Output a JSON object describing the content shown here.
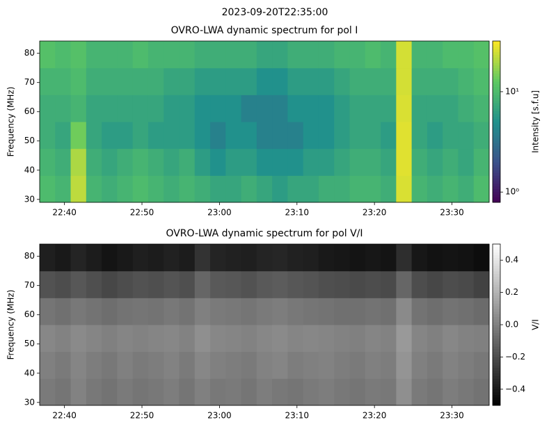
{
  "title": "2023-09-20T22:35:00",
  "chart_data": [
    {
      "type": "heatmap",
      "title": "OVRO-LWA dynamic spectrum for pol I",
      "ylabel": "Frequency (MHz)",
      "colorbar_label": "Intensity [s.f.u]",
      "colormap": "viridis",
      "color_scale": "log",
      "clim": [
        0.79,
        32
      ],
      "cticks": [
        {
          "value": 1,
          "label": "10⁰"
        },
        {
          "value": 10,
          "label": "10¹"
        }
      ],
      "xlim": [
        36.8,
        94.8
      ],
      "xticks": [
        {
          "value": 40,
          "label": "22:40"
        },
        {
          "value": 50,
          "label": "22:50"
        },
        {
          "value": 60,
          "label": "23:00"
        },
        {
          "value": 70,
          "label": "23:10"
        },
        {
          "value": 80,
          "label": "23:20"
        },
        {
          "value": 90,
          "label": "23:30"
        }
      ],
      "ylim": [
        29,
        84.2
      ],
      "yticks": [
        30,
        40,
        50,
        60,
        70,
        80
      ],
      "x": [
        37.8,
        39.8,
        41.8,
        43.8,
        45.8,
        47.8,
        49.8,
        51.8,
        53.8,
        55.8,
        57.8,
        59.8,
        61.8,
        63.8,
        65.8,
        67.8,
        69.8,
        71.8,
        73.8,
        75.8,
        77.8,
        79.8,
        81.8,
        83.8,
        85.8,
        87.8,
        89.8,
        91.8,
        93.8
      ],
      "y": [
        33.6,
        42.8,
        52,
        61.2,
        70.4,
        79.6
      ],
      "z": [
        [
          10,
          9,
          22,
          9,
          8,
          9,
          10,
          9,
          8,
          9,
          8,
          7,
          7,
          8,
          7,
          6,
          7,
          7,
          8,
          8,
          9,
          9,
          8,
          26,
          9,
          8,
          9,
          8,
          10
        ],
        [
          9,
          8,
          20,
          8,
          7,
          8,
          9,
          8,
          7,
          8,
          6,
          5,
          6,
          6,
          5,
          5,
          5,
          6,
          6,
          7,
          8,
          8,
          7,
          27,
          8,
          7,
          8,
          7,
          9
        ],
        [
          8,
          7,
          14,
          7,
          6,
          6,
          7,
          6,
          6,
          6,
          5,
          4,
          5,
          5,
          4,
          4,
          4,
          5,
          5,
          6,
          7,
          7,
          6,
          27,
          7,
          6,
          7,
          7,
          8
        ],
        [
          8,
          8,
          9,
          7,
          7,
          7,
          7,
          7,
          6,
          6,
          5,
          5,
          5,
          4,
          4,
          4,
          5,
          5,
          5,
          6,
          7,
          7,
          7,
          26,
          7,
          7,
          7,
          8,
          9
        ],
        [
          9,
          9,
          10,
          8,
          8,
          8,
          8,
          8,
          7,
          7,
          6,
          6,
          6,
          6,
          5,
          5,
          6,
          6,
          6,
          7,
          8,
          8,
          8,
          25,
          8,
          8,
          8,
          9,
          10
        ],
        [
          11,
          10,
          11,
          9,
          9,
          9,
          10,
          9,
          9,
          9,
          8,
          8,
          8,
          8,
          7,
          7,
          8,
          8,
          8,
          9,
          9,
          10,
          9,
          25,
          9,
          9,
          10,
          10,
          11
        ]
      ]
    },
    {
      "type": "heatmap",
      "title": "OVRO-LWA dynamic spectrum for pol V/I",
      "ylabel": "Frequency (MHz)",
      "colorbar_label": "V/I",
      "colormap": "gray",
      "color_scale": "linear",
      "clim": [
        -0.5,
        0.5
      ],
      "cticks": [
        {
          "value": -0.4,
          "label": "−0.4"
        },
        {
          "value": -0.2,
          "label": "−0.2"
        },
        {
          "value": 0,
          "label": "0.0"
        },
        0.2,
        0.4
      ],
      "xlim": [
        36.8,
        94.8
      ],
      "xticks": [
        {
          "value": 40,
          "label": "22:40"
        },
        {
          "value": 50,
          "label": "22:50"
        },
        {
          "value": 60,
          "label": "23:00"
        },
        {
          "value": 70,
          "label": "23:10"
        },
        {
          "value": 80,
          "label": "23:20"
        },
        {
          "value": 90,
          "label": "23:30"
        }
      ],
      "ylim": [
        29,
        84.2
      ],
      "yticks": [
        30,
        40,
        50,
        60,
        70,
        80
      ],
      "x": [
        37.8,
        39.8,
        41.8,
        43.8,
        45.8,
        47.8,
        49.8,
        51.8,
        53.8,
        55.8,
        57.8,
        59.8,
        61.8,
        63.8,
        65.8,
        67.8,
        69.8,
        71.8,
        73.8,
        75.8,
        77.8,
        79.8,
        81.8,
        83.8,
        85.8,
        87.8,
        89.8,
        91.8,
        93.8
      ],
      "y": [
        33.6,
        42.8,
        52,
        61.2,
        70.4,
        79.6
      ],
      "z": [
        [
          -0.02,
          -0.04,
          0.01,
          -0.03,
          -0.05,
          -0.02,
          -0.04,
          -0.03,
          -0.01,
          -0.04,
          0.0,
          -0.03,
          -0.02,
          -0.04,
          -0.01,
          -0.03,
          -0.04,
          -0.02,
          -0.01,
          -0.03,
          -0.04,
          -0.02,
          -0.03,
          0.06,
          -0.02,
          -0.04,
          -0.01,
          -0.03,
          -0.05
        ],
        [
          0.0,
          -0.02,
          0.02,
          -0.01,
          -0.03,
          0.0,
          -0.02,
          -0.01,
          0.01,
          -0.02,
          0.03,
          0.0,
          -0.01,
          -0.02,
          0.01,
          0.02,
          -0.01,
          0.0,
          0.01,
          -0.01,
          -0.02,
          0.0,
          -0.01,
          0.08,
          0.0,
          -0.02,
          0.01,
          -0.01,
          -0.03
        ],
        [
          0.03,
          0.01,
          0.04,
          0.02,
          0.0,
          0.02,
          0.01,
          0.02,
          0.03,
          0.01,
          0.06,
          0.03,
          0.02,
          0.01,
          0.03,
          0.04,
          0.02,
          0.03,
          0.02,
          0.01,
          0.0,
          0.02,
          0.01,
          0.1,
          0.02,
          0.0,
          0.03,
          0.01,
          0.0
        ],
        [
          -0.04,
          -0.06,
          -0.03,
          -0.05,
          -0.07,
          -0.05,
          -0.04,
          -0.05,
          -0.03,
          -0.05,
          0.0,
          -0.02,
          -0.03,
          -0.04,
          -0.02,
          -0.01,
          -0.03,
          -0.04,
          -0.05,
          -0.06,
          -0.06,
          -0.05,
          -0.06,
          0.04,
          -0.05,
          -0.07,
          -0.05,
          -0.06,
          -0.08
        ],
        [
          -0.18,
          -0.2,
          -0.16,
          -0.19,
          -0.22,
          -0.2,
          -0.18,
          -0.19,
          -0.17,
          -0.19,
          -0.1,
          -0.15,
          -0.16,
          -0.18,
          -0.15,
          -0.14,
          -0.16,
          -0.17,
          -0.19,
          -0.2,
          -0.21,
          -0.2,
          -0.21,
          -0.1,
          -0.2,
          -0.22,
          -0.2,
          -0.21,
          -0.24
        ],
        [
          -0.38,
          -0.4,
          -0.36,
          -0.39,
          -0.42,
          -0.4,
          -0.38,
          -0.39,
          -0.37,
          -0.39,
          -0.3,
          -0.36,
          -0.37,
          -0.38,
          -0.36,
          -0.35,
          -0.37,
          -0.38,
          -0.4,
          -0.41,
          -0.42,
          -0.41,
          -0.42,
          -0.32,
          -0.41,
          -0.43,
          -0.42,
          -0.43,
          -0.45
        ]
      ]
    }
  ]
}
